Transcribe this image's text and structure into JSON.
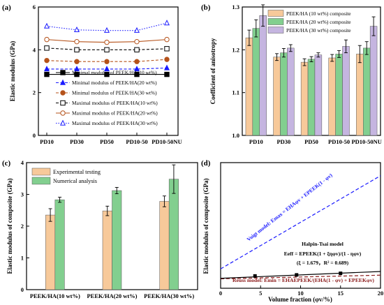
{
  "chart_data": [
    {
      "panel": "(a)",
      "type": "line",
      "categories": [
        "PD10",
        "PD30",
        "PD50",
        "PD10-50",
        "PD10-50NU"
      ],
      "ylabel": "Elastic modulus (GPa)",
      "ylim": [
        0,
        6
      ],
      "yticks": [
        "0",
        "2",
        "4",
        "6"
      ],
      "legend_position": "bottom-right",
      "series": [
        {
          "name": "Minimal modulus of PEEK/HA(10 wt%)",
          "values": [
            2.85,
            2.85,
            2.85,
            2.85,
            2.85
          ],
          "color": "#000000",
          "marker": "square",
          "dash": "solid"
        },
        {
          "name": "Minimal modulus of PEEK/HA(20 wt%)",
          "values": [
            3.1,
            3.1,
            3.1,
            3.1,
            3.15
          ],
          "color": "#1a1aff",
          "marker": "triangle",
          "dash": "dash"
        },
        {
          "name": "Minimal modulus of PEEK/HA(30 wt%)",
          "values": [
            3.5,
            3.45,
            3.45,
            3.45,
            3.55
          ],
          "color": "#b5521a",
          "marker": "circle",
          "dash": "dash"
        },
        {
          "name": "Maximal modulus of PEEK/HA(10 wt%)",
          "values": [
            4.08,
            4.0,
            4.0,
            4.0,
            4.05
          ],
          "color": "#000000",
          "marker": "open-square",
          "dash": "dash"
        },
        {
          "name": "Maximal modulus of PEEK/HA(20 wt%)",
          "values": [
            4.48,
            4.38,
            4.35,
            4.38,
            4.48
          ],
          "color": "#b5521a",
          "marker": "open-circle",
          "dash": "solid"
        },
        {
          "name": "Maximal modulus of PEEK/HA(30 wt%)",
          "values": [
            5.1,
            4.93,
            4.9,
            4.9,
            5.25
          ],
          "color": "#1a1aff",
          "marker": "open-triangle",
          "dash": "dot"
        }
      ]
    },
    {
      "panel": "(b)",
      "type": "bar",
      "categories": [
        "PD10",
        "PD30",
        "PD50",
        "PD10-50",
        "PD10-50NU"
      ],
      "ylabel": "Coefficient of anisotropy",
      "ylim": [
        1.0,
        1.3
      ],
      "yticks": [
        "1.0",
        "1.1",
        "1.2",
        "1.3"
      ],
      "legend_position": "top",
      "series": [
        {
          "name": "PEEK/HA (10 wt%) composite",
          "values": [
            1.228,
            1.183,
            1.171,
            1.181,
            1.19
          ],
          "errors": [
            0.018,
            0.008,
            0.008,
            0.008,
            0.02
          ],
          "color": "#f7c99a"
        },
        {
          "name": "PEEK/HA (20 wt%) composite",
          "values": [
            1.25,
            1.193,
            1.178,
            1.19,
            1.204
          ],
          "errors": [
            0.02,
            0.01,
            0.006,
            0.008,
            0.015
          ],
          "color": "#82cf8f"
        },
        {
          "name": "PEEK/HA (30 wt%) composite",
          "values": [
            1.28,
            1.204,
            1.188,
            1.208,
            1.255
          ],
          "errors": [
            0.025,
            0.008,
            0.005,
            0.015,
            0.022
          ],
          "color": "#c5b5e0"
        }
      ]
    },
    {
      "panel": "(c)",
      "type": "bar",
      "categories": [
        "PEEK/HA(10 wt%)",
        "PEEK/HA(20 wt%)",
        "PEEK/HA(30 wt%)"
      ],
      "ylabel": "Elastic modulus of composite (GPa)",
      "ylim": [
        0,
        4
      ],
      "yticks": [
        "0",
        "1",
        "2",
        "3",
        "4"
      ],
      "legend_position": "top-left",
      "series": [
        {
          "name": "Experimental testing",
          "values": [
            2.35,
            2.48,
            2.78
          ],
          "errors": [
            0.2,
            0.15,
            0.17
          ],
          "color": "#f7c99a"
        },
        {
          "name": "Numerical analysis",
          "values": [
            2.83,
            3.12,
            3.48
          ],
          "errors": [
            0.08,
            0.1,
            0.45
          ],
          "color": "#82cf8f"
        }
      ]
    },
    {
      "panel": "(d)",
      "type": "scatter",
      "xlabel": "Volume fraction (φv/%)",
      "ylabel": "Elastic modulus of composite (GPa)",
      "xlim": [
        0,
        20
      ],
      "xticks": [
        "0",
        "5",
        "10",
        "15",
        "20"
      ],
      "ylim": [
        0,
        24
      ],
      "points": [
        [
          4.3,
          2.35
        ],
        [
          9.5,
          2.55
        ],
        [
          15.0,
          2.85
        ]
      ],
      "voigt": [
        [
          0,
          3.7
        ],
        [
          20,
          21.5
        ]
      ],
      "reuss": [
        [
          0,
          1.8
        ],
        [
          20,
          2.5
        ]
      ],
      "halpin": [
        [
          0,
          1.9
        ],
        [
          20,
          3.2
        ]
      ],
      "annotations": {
        "voigt": "Voigt model: Emax = EHAφv + EPEEK(1 - φv)",
        "halpin_title": "Halpin-Tsai model",
        "halpin_eq": "Eeff = EPEEK(1 + ξηφv)/(1 - ηφv)",
        "halpin_fit": "(ξ = 1.679，R² = 0.689)",
        "reuss": "Reuss model: Emin = EHAEPEEK/(EHA(1 - φv) + EPEEKφv)"
      }
    }
  ]
}
